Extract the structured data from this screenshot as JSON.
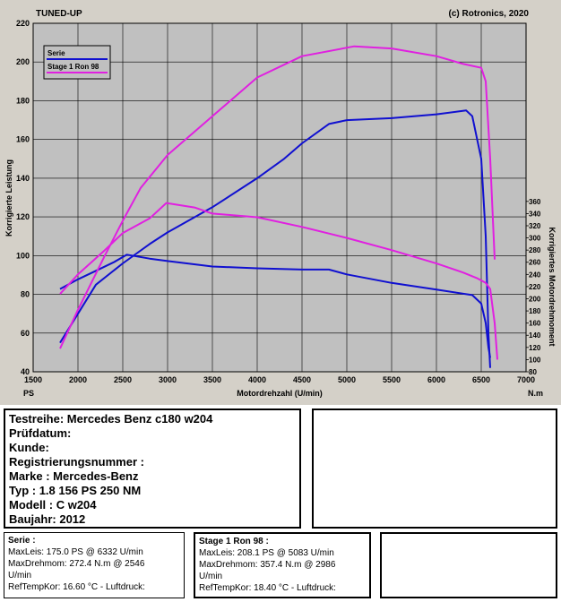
{
  "header": {
    "left": "TUNED-UP",
    "right": "(c) Rotronics, 2020"
  },
  "chart_data": {
    "type": "line",
    "xlabel": "Motordrehzahl (U/min)",
    "ylabel_left": "Korrigierte Leistung",
    "ylabel_right": "Korrigiertes Motordrehmoment",
    "x_unit_left": "PS",
    "x_unit_right": "N.m",
    "xlim": [
      1500,
      7000
    ],
    "ylim_left": [
      40,
      220
    ],
    "ylim_right": [
      80,
      360
    ],
    "x_ticks": [
      1500,
      2000,
      2500,
      3000,
      3500,
      4000,
      4500,
      5000,
      5500,
      6000,
      6500,
      7000
    ],
    "y_ticks_left": [
      40,
      60,
      80,
      100,
      120,
      140,
      160,
      180,
      200,
      220
    ],
    "y_ticks_right": [
      80,
      100,
      120,
      140,
      160,
      180,
      200,
      220,
      240,
      260,
      280,
      300,
      320,
      340,
      360
    ],
    "grid": true,
    "legend_position": "top-left",
    "series": [
      {
        "name": "Serie",
        "color": "#1010d0",
        "axis": "left",
        "quantity": "power",
        "points": [
          [
            1800,
            55
          ],
          [
            2000,
            70
          ],
          [
            2200,
            85
          ],
          [
            2500,
            96
          ],
          [
            2800,
            106
          ],
          [
            3000,
            112
          ],
          [
            3500,
            125
          ],
          [
            4000,
            140
          ],
          [
            4300,
            150
          ],
          [
            4500,
            158
          ],
          [
            4800,
            168
          ],
          [
            5000,
            170
          ],
          [
            5500,
            171
          ],
          [
            6000,
            173
          ],
          [
            6332,
            175
          ],
          [
            6400,
            172
          ],
          [
            6500,
            150
          ],
          [
            6550,
            110
          ],
          [
            6580,
            60
          ],
          [
            6600,
            42
          ]
        ]
      },
      {
        "name": "Serie",
        "color": "#1010d0",
        "axis": "right",
        "quantity": "torque",
        "points": [
          [
            1800,
            216
          ],
          [
            2000,
            232
          ],
          [
            2200,
            246
          ],
          [
            2400,
            260
          ],
          [
            2546,
            272.4
          ],
          [
            2800,
            266
          ],
          [
            3000,
            262
          ],
          [
            3500,
            253
          ],
          [
            4000,
            250
          ],
          [
            4500,
            248
          ],
          [
            4800,
            248
          ],
          [
            5000,
            240
          ],
          [
            5500,
            226
          ],
          [
            6000,
            215
          ],
          [
            6400,
            206
          ],
          [
            6500,
            192
          ],
          [
            6550,
            160
          ],
          [
            6580,
            120
          ],
          [
            6600,
            103
          ]
        ]
      },
      {
        "name": "Stage 1 Ron 98",
        "color": "#e020e0",
        "axis": "left",
        "quantity": "power",
        "points": [
          [
            1800,
            52
          ],
          [
            2000,
            72
          ],
          [
            2300,
            100
          ],
          [
            2500,
            118
          ],
          [
            2700,
            135
          ],
          [
            3000,
            152
          ],
          [
            3500,
            172
          ],
          [
            4000,
            192
          ],
          [
            4500,
            203
          ],
          [
            5083,
            208.1
          ],
          [
            5500,
            207
          ],
          [
            6000,
            203
          ],
          [
            6300,
            199
          ],
          [
            6500,
            197
          ],
          [
            6550,
            190
          ],
          [
            6600,
            150
          ],
          [
            6650,
            98
          ]
        ]
      },
      {
        "name": "Stage 1 Ron 98",
        "color": "#e020e0",
        "axis": "right",
        "quantity": "torque",
        "points": [
          [
            1800,
            208
          ],
          [
            2000,
            240
          ],
          [
            2300,
            280
          ],
          [
            2500,
            308
          ],
          [
            2800,
            332
          ],
          [
            2986,
            357.4
          ],
          [
            3300,
            350
          ],
          [
            3500,
            340
          ],
          [
            4000,
            334
          ],
          [
            4500,
            318
          ],
          [
            5000,
            300
          ],
          [
            5500,
            280
          ],
          [
            6000,
            258
          ],
          [
            6300,
            243
          ],
          [
            6450,
            234
          ],
          [
            6550,
            226
          ],
          [
            6600,
            216
          ],
          [
            6650,
            160
          ],
          [
            6680,
            100
          ]
        ]
      }
    ]
  },
  "info_left": {
    "lines": [
      "Testreihe: Mercedes Benz c180 w204",
      "Prüfdatum:",
      "Kunde:",
      "Registrierungsnummer  :",
      "Marke  : Mercedes-Benz",
      "Typ  : 1.8 156 PS 250 NM",
      "Modell  : C w204",
      "Baujahr: 2012"
    ]
  },
  "result_serie": {
    "title": "Serie :",
    "lines": [
      "MaxLeis: 175.0 PS @ 6332 U/min",
      "MaxDrehmom: 272.4 N.m @ 2546",
      "U/min",
      "RefTempKor: 16.60 °C - Luftdruck:"
    ]
  },
  "result_stage": {
    "title": "Stage 1 Ron 98 :",
    "lines": [
      "MaxLeis: 208.1 PS @ 5083 U/min",
      "MaxDrehmom: 357.4 N.m @ 2986",
      "U/min",
      "RefTempKor: 18.40 °C - Luftdruck:"
    ]
  }
}
